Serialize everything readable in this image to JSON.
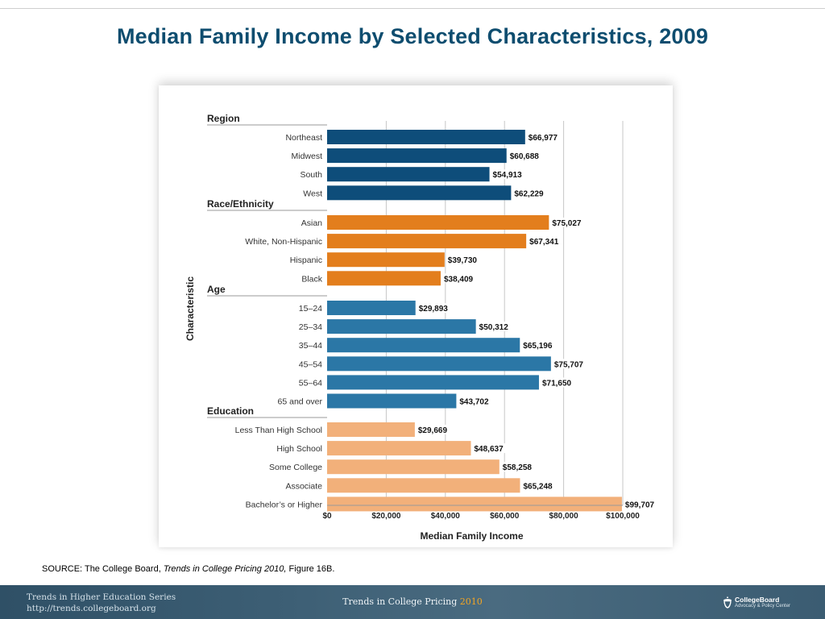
{
  "slide": {
    "title": "Median Family Income by Selected Characteristics, 2009"
  },
  "source": {
    "prefix": "SOURCE: The College Board, ",
    "publication": "Trends in College Pricing 2010,",
    "suffix": " Figure 16B."
  },
  "footer": {
    "series_line1": "Trends in Higher Education Series",
    "series_line2": "http://trends.collegeboard.org",
    "center_text": "Trends in College Pricing ",
    "center_year": "2010",
    "logo_name": "CollegeBoard",
    "logo_sub": "Advocacy & Policy Center",
    "logo_icon": "acorn-icon"
  },
  "colors": {
    "title": "#0e4d6f",
    "region": "#0e4d7a",
    "race_ethnicity": "#e37e1d",
    "age": "#2b77a6",
    "education": "#f2b07a"
  },
  "chart_data": {
    "type": "bar",
    "orientation": "horizontal",
    "title": "",
    "xlabel": "Median Family Income",
    "ylabel": "Characteristic",
    "xlim": [
      0,
      100000
    ],
    "x_ticks": [
      0,
      20000,
      40000,
      60000,
      80000,
      100000
    ],
    "x_tick_labels": [
      "$0",
      "$20,000",
      "$40,000",
      "$60,000",
      "$80,000",
      "$100,000"
    ],
    "grid": "vertical",
    "groups": [
      {
        "name": "Region",
        "color_key": "region",
        "categories": [
          "Northeast",
          "Midwest",
          "South",
          "West"
        ],
        "values": [
          66977,
          60688,
          54913,
          62229
        ],
        "value_labels": [
          "$66,977",
          "$60,688",
          "$54,913",
          "$62,229"
        ]
      },
      {
        "name": "Race/Ethnicity",
        "color_key": "race_ethnicity",
        "categories": [
          "Asian",
          "White, Non-Hispanic",
          "Hispanic",
          "Black"
        ],
        "values": [
          75027,
          67341,
          39730,
          38409
        ],
        "value_labels": [
          "$75,027",
          "$67,341",
          "$39,730",
          "$38,409"
        ]
      },
      {
        "name": "Age",
        "color_key": "age",
        "categories": [
          "15–24",
          "25–34",
          "35–44",
          "45–54",
          "55–64",
          "65 and over"
        ],
        "values": [
          29893,
          50312,
          65196,
          75707,
          71650,
          43702
        ],
        "value_labels": [
          "$29,893",
          "$50,312",
          "$65,196",
          "$75,707",
          "$71,650",
          "$43,702"
        ]
      },
      {
        "name": "Education",
        "color_key": "education",
        "categories": [
          "Less Than High School",
          "High School",
          "Some College",
          "Associate",
          "Bachelor’s or Higher"
        ],
        "values": [
          29669,
          48637,
          58258,
          65248,
          99707
        ],
        "value_labels": [
          "$29,669",
          "$48,637",
          "$58,258",
          "$65,248",
          "$99,707"
        ]
      }
    ]
  }
}
